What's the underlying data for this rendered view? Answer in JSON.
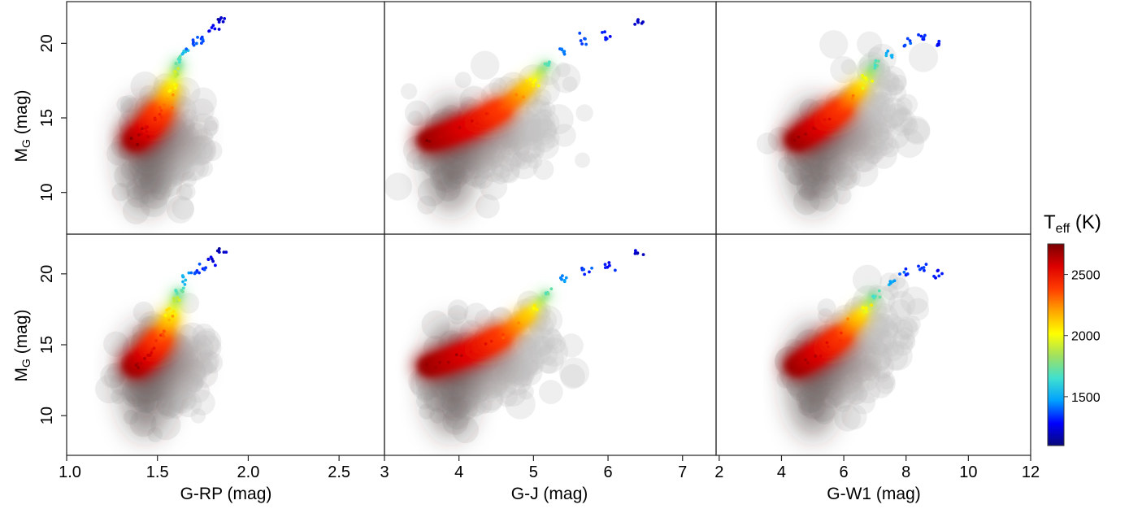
{
  "chart_data": {
    "type": "scatter",
    "description_panels_layout": "2 rows x 3 columns",
    "y_axis": {
      "label_main": "M",
      "label_sub": "G",
      "label_unit": " (mag)",
      "lim": [
        22.8,
        7.2
      ],
      "ticks": [
        10,
        15,
        20
      ],
      "tick_labels": [
        "10",
        "15",
        "20"
      ],
      "inverted": true
    },
    "x_axes": [
      {
        "label": "G-RP (mag)",
        "lim": [
          1.0,
          2.75
        ],
        "ticks": [
          1.0,
          1.5,
          2.0,
          2.5
        ],
        "tick_labels": [
          "1.0",
          "1.5",
          "2.0",
          "2.5"
        ]
      },
      {
        "label": "G-J (mag)",
        "lim": [
          3.0,
          7.45
        ],
        "ticks": [
          3,
          4,
          5,
          6,
          7
        ],
        "tick_labels": [
          "3",
          "4",
          "5",
          "6",
          "7"
        ]
      },
      {
        "label": "G-W1 (mag)",
        "lim": [
          1.9,
          12.0
        ],
        "ticks": [
          2,
          4,
          6,
          8,
          10,
          12
        ],
        "tick_labels": [
          "2",
          "4",
          "6",
          "8",
          "10",
          "12"
        ]
      }
    ],
    "colorbar": {
      "title_main": "T",
      "title_sub": "eff",
      "title_unit": " (K)",
      "range": [
        1100,
        2750
      ],
      "ticks": [
        1500,
        2000,
        2500
      ],
      "tick_labels": [
        "1500",
        "2000",
        "2500"
      ],
      "colors": [
        "#08087a",
        "#0000ff",
        "#00a0ff",
        "#3fe0d0",
        "#a0e060",
        "#ffff00",
        "#ffa500",
        "#ff3c00",
        "#dd0000",
        "#7a0000"
      ]
    },
    "grid": false,
    "background_density": "grey density of full sample",
    "points": [
      {
        "x": [
          1.38,
          1.4,
          1.42,
          1.44,
          1.46,
          1.48,
          1.5,
          1.52,
          1.54,
          1.56,
          1.58,
          1.6,
          1.62,
          1.65,
          1.7,
          1.75,
          1.8,
          1.85
        ],
        "y": [
          13.5,
          13.8,
          14.0,
          14.2,
          14.5,
          14.8,
          15.2,
          15.6,
          16.0,
          16.6,
          17.2,
          18.0,
          18.8,
          19.5,
          20.0,
          20.3,
          21.0,
          21.6
        ],
        "teff": [
          2700,
          2650,
          2620,
          2600,
          2550,
          2500,
          2450,
          2380,
          2300,
          2200,
          2050,
          1900,
          1700,
          1550,
          1400,
          1350,
          1250,
          1200
        ]
      },
      {
        "x": [
          3.6,
          3.8,
          4.0,
          4.2,
          4.4,
          4.6,
          4.8,
          5.0,
          5.2,
          5.4,
          5.7,
          6.0,
          6.4
        ],
        "y": [
          13.5,
          13.8,
          14.2,
          14.6,
          15.1,
          15.7,
          16.5,
          17.5,
          18.7,
          19.6,
          20.2,
          20.5,
          21.4
        ],
        "teff": [
          2700,
          2650,
          2600,
          2550,
          2480,
          2380,
          2250,
          2050,
          1700,
          1450,
          1350,
          1300,
          1200
        ]
      },
      {
        "x": [
          4.5,
          4.8,
          5.1,
          5.5,
          5.9,
          6.3,
          6.7,
          7.0,
          7.5,
          8.0,
          8.5,
          9.0
        ],
        "y": [
          13.5,
          13.9,
          14.3,
          14.9,
          15.6,
          16.5,
          17.5,
          18.6,
          19.3,
          20.0,
          20.3,
          20.0
        ],
        "teff": [
          2700,
          2650,
          2600,
          2520,
          2420,
          2250,
          2000,
          1700,
          1500,
          1350,
          1300,
          1300
        ]
      }
    ]
  }
}
